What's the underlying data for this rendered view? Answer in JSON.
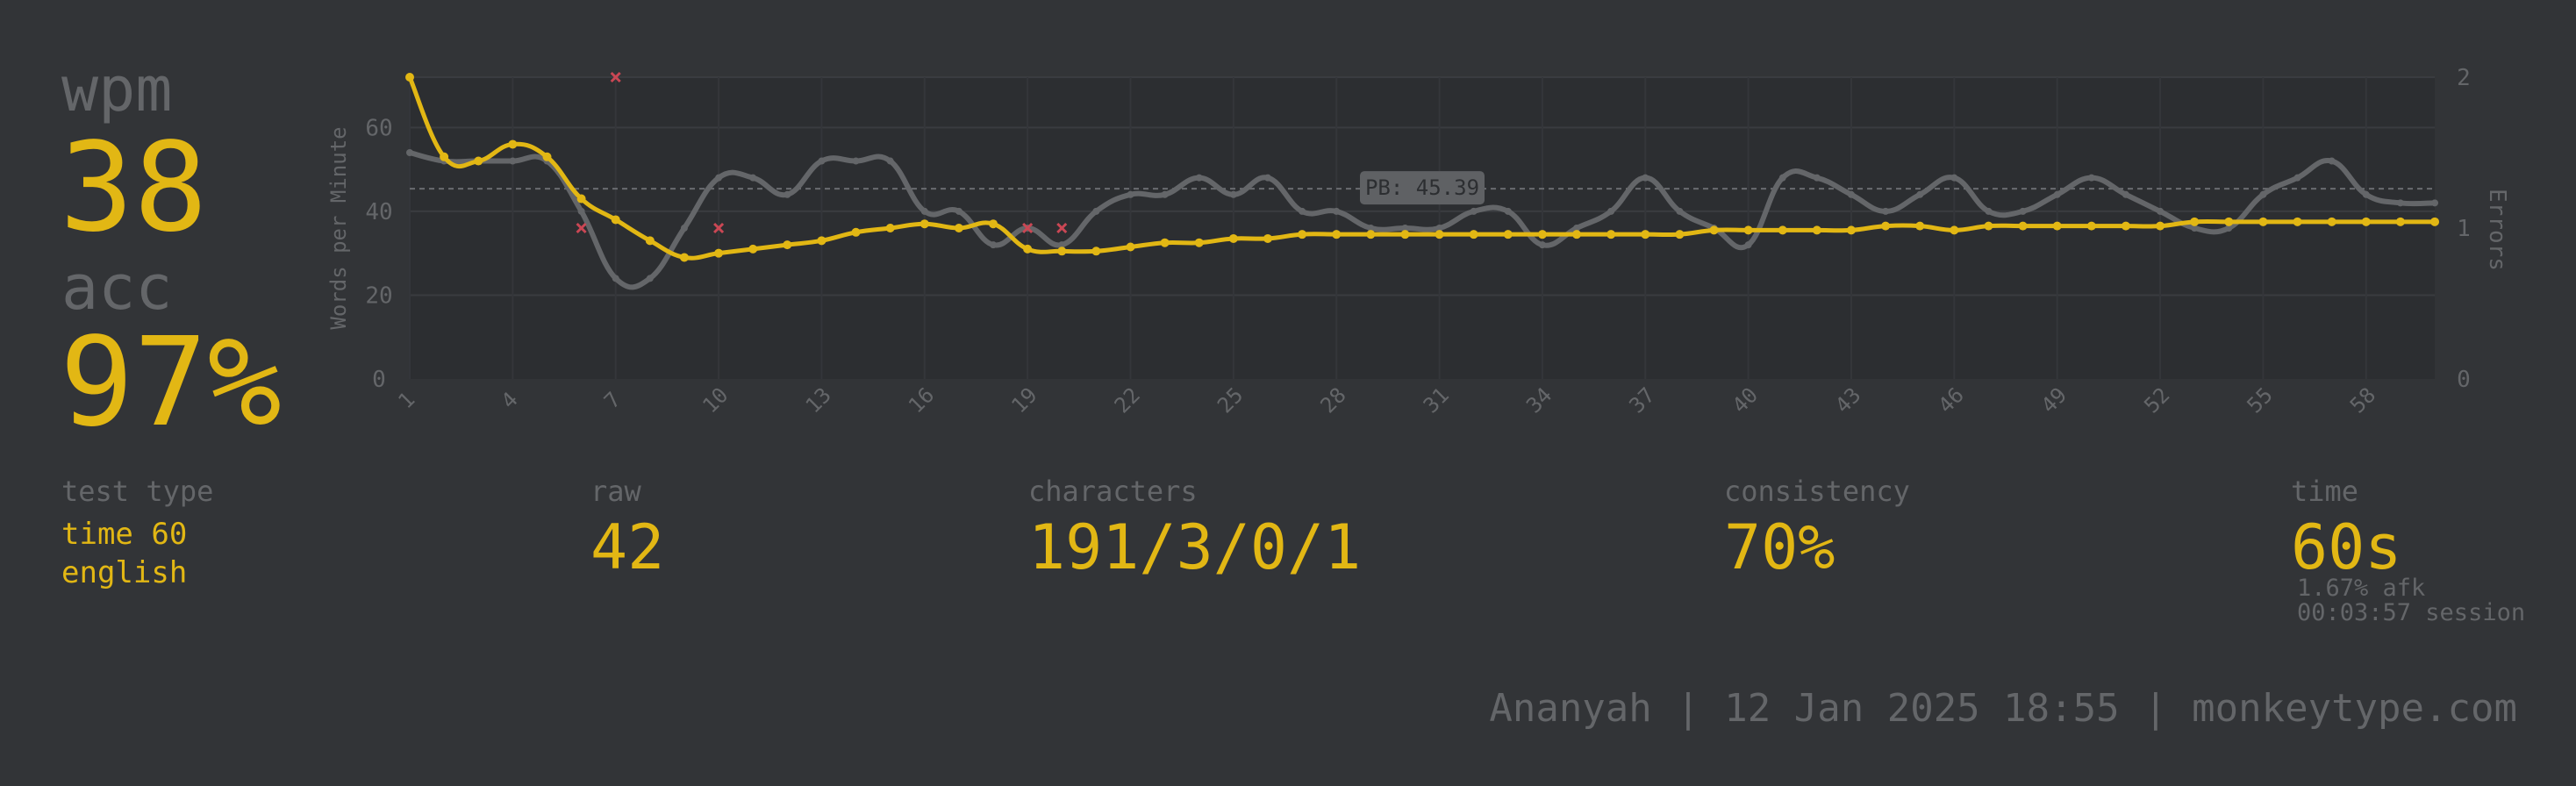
{
  "colors": {
    "background": "#323437",
    "accent": "#e2b714",
    "sub": "#646669",
    "error": "#ca4754",
    "raw_line": "#646669"
  },
  "stats": {
    "wpm_label": "wpm",
    "wpm_value": "38",
    "acc_label": "acc",
    "acc_value": "97%"
  },
  "details": {
    "test_type_label": "test type",
    "test_type_line1": "time 60",
    "test_type_line2": "english",
    "raw_label": "raw",
    "raw_value": "42",
    "characters_label": "characters",
    "characters_value": "191/3/0/1",
    "consistency_label": "consistency",
    "consistency_value": "70%",
    "time_label": "time",
    "time_value": "60s",
    "afk_text": "1.67% afk",
    "session_text": "00:03:57 session"
  },
  "footer": {
    "username": "Ananyah",
    "sep1": "|",
    "datetime": "12 Jan 2025 18:55",
    "sep2": "|",
    "site": "monkeytype.com"
  },
  "chart_data": {
    "type": "line",
    "ylabel": "Words per Minute",
    "y2label": "Errors",
    "ylim": [
      0,
      72
    ],
    "y2lim": [
      0,
      2
    ],
    "yticks": [
      "0",
      "20",
      "40",
      "60"
    ],
    "y2ticks": [
      "0",
      "1",
      "2"
    ],
    "xticks": [
      "1",
      "4",
      "7",
      "10",
      "13",
      "16",
      "19",
      "22",
      "25",
      "28",
      "31",
      "34",
      "37",
      "40",
      "43",
      "46",
      "49",
      "52",
      "55",
      "58"
    ],
    "pb_label": "PB: 45.39",
    "pb_value": 45.39,
    "x": [
      1,
      2,
      3,
      4,
      5,
      6,
      7,
      8,
      9,
      10,
      11,
      12,
      13,
      14,
      15,
      16,
      17,
      18,
      19,
      20,
      21,
      22,
      23,
      24,
      25,
      26,
      27,
      28,
      29,
      30,
      31,
      32,
      33,
      34,
      35,
      36,
      37,
      38,
      39,
      40,
      41,
      42,
      43,
      44,
      45,
      46,
      47,
      48,
      49,
      50,
      51,
      52,
      53,
      54,
      55,
      56,
      57,
      58,
      59,
      60
    ],
    "series": [
      {
        "name": "wpm",
        "values": [
          72,
          53,
          52,
          56,
          53,
          43,
          38,
          33,
          29,
          30,
          31,
          32,
          33,
          35,
          36,
          37,
          36,
          37,
          31,
          30.5,
          30.5,
          31.5,
          32.5,
          32.5,
          33.5,
          33.5,
          34.5,
          34.5,
          34.5,
          34.5,
          34.5,
          34.5,
          34.5,
          34.5,
          34.5,
          34.5,
          34.5,
          34.5,
          35.5,
          35.5,
          35.5,
          35.5,
          35.5,
          36.5,
          36.5,
          35.5,
          36.5,
          36.5,
          36.5,
          36.5,
          36.5,
          36.5,
          37.5,
          37.5,
          37.5,
          37.5,
          37.5,
          37.5,
          37.5,
          37.5
        ]
      },
      {
        "name": "raw",
        "values": [
          54,
          52,
          52,
          52,
          52,
          40,
          24,
          24,
          36,
          48,
          48,
          44,
          52,
          52,
          52,
          40,
          40,
          32,
          36,
          32,
          40,
          44,
          44,
          48,
          44,
          48,
          40,
          40,
          36,
          36,
          36,
          40,
          40,
          32,
          36,
          40,
          48,
          40,
          36,
          32,
          48,
          48,
          44,
          40,
          44,
          48,
          40,
          40,
          44,
          48,
          44,
          40,
          36,
          36,
          44,
          48,
          52,
          44,
          42,
          42
        ]
      },
      {
        "name": "errors",
        "x": [
          6,
          7,
          10,
          19,
          20
        ],
        "values": [
          1,
          2,
          1,
          1,
          1
        ]
      }
    ]
  }
}
